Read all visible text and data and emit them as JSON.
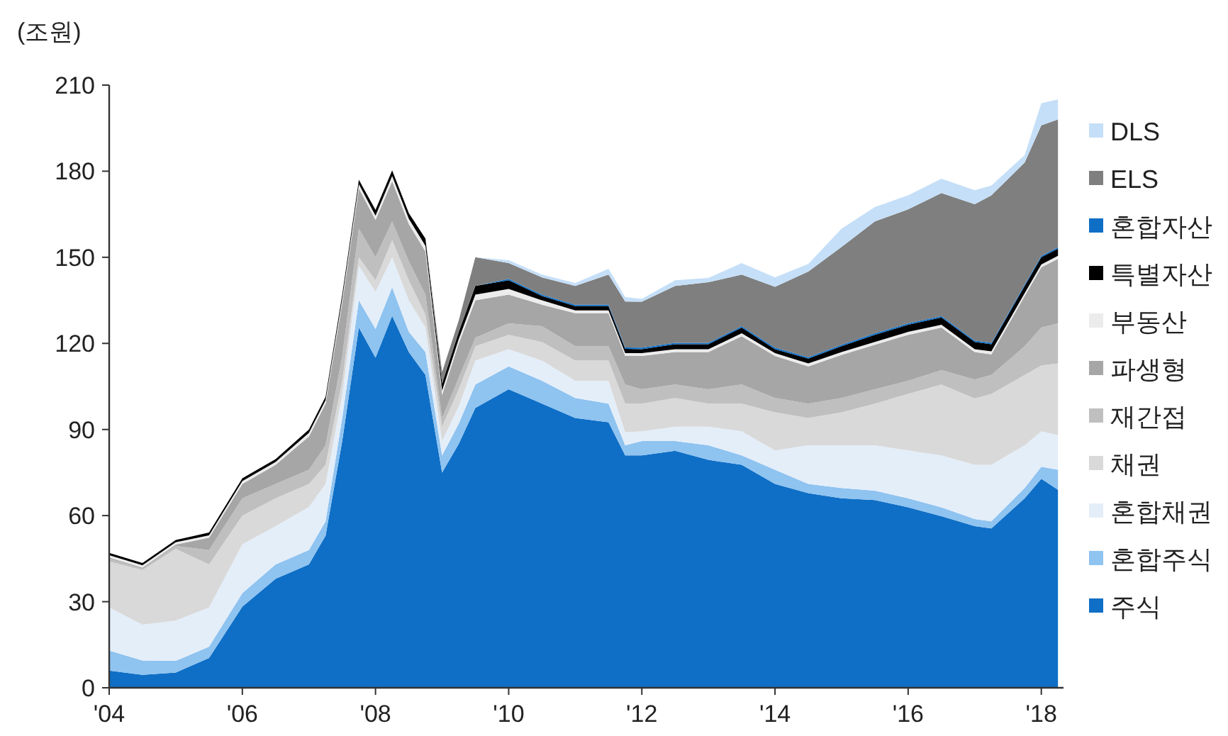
{
  "chart_data": {
    "type": "area",
    "stacked": true,
    "ylabel": "(조원)",
    "legend": "right",
    "grid": false,
    "x": [
      "2004-01",
      "2004-07",
      "2005-01",
      "2005-07",
      "2006-01",
      "2006-07",
      "2007-01",
      "2007-04",
      "2007-07",
      "2007-10",
      "2008-01",
      "2008-04",
      "2008-07",
      "2008-10",
      "2009-01",
      "2009-04",
      "2009-07",
      "2010-01",
      "2010-07",
      "2011-01",
      "2011-07",
      "2011-10",
      "2012-01",
      "2012-07",
      "2013-01",
      "2013-07",
      "2014-01",
      "2014-07",
      "2015-01",
      "2015-07",
      "2016-01",
      "2016-07",
      "2017-01",
      "2017-04",
      "2017-10",
      "2018-01",
      "2018-04"
    ],
    "xlim": [
      "2004-01",
      "2018-05"
    ],
    "xticks": [
      {
        "value": "2004-01",
        "label": "'04"
      },
      {
        "value": "2006-01",
        "label": "'06"
      },
      {
        "value": "2008-01",
        "label": "'08"
      },
      {
        "value": "2010-01",
        "label": "'10"
      },
      {
        "value": "2012-01",
        "label": "'12"
      },
      {
        "value": "2014-01",
        "label": "'14"
      },
      {
        "value": "2016-01",
        "label": "'16"
      },
      {
        "value": "2018-01",
        "label": "'18"
      }
    ],
    "ylim": [
      0,
      210
    ],
    "yticks": [
      0,
      30,
      60,
      90,
      120,
      150,
      180,
      210
    ],
    "series": [
      {
        "name": "주식",
        "color": "#0f6fc6",
        "values": [
          6,
          4.5,
          5.3,
          10.4,
          28.3,
          38,
          43,
          53,
          86,
          125.5,
          115,
          129.6,
          117,
          109,
          75,
          85,
          97.5,
          104,
          99,
          94,
          92.5,
          81,
          81,
          82.6,
          79.4,
          77.7,
          71,
          67.8,
          66,
          65.4,
          62.9,
          59.8,
          56.3,
          55.5,
          66,
          72.8,
          69
        ]
      },
      {
        "name": "혼합주식",
        "color": "#8fc3f0",
        "values": [
          7,
          5,
          4.1,
          3.9,
          4.7,
          5,
          5,
          5,
          8,
          9.5,
          10,
          9.9,
          7,
          8,
          6,
          7,
          8.2,
          8,
          8,
          7,
          6.5,
          3.5,
          5,
          3.4,
          5.1,
          3.3,
          5,
          3.2,
          3.6,
          3.3,
          3.1,
          3.1,
          2.5,
          2.5,
          3.6,
          4.2,
          7
        ]
      },
      {
        "name": "혼합채권",
        "color": "#e4eef9",
        "values": [
          15,
          12.5,
          14,
          13.7,
          17,
          13.3,
          15,
          13,
          8,
          12,
          13,
          10.5,
          11,
          8.5,
          5,
          6,
          8.3,
          6,
          7,
          6,
          8,
          4.5,
          3.4,
          5,
          6.5,
          8.4,
          6.7,
          13.5,
          14.9,
          15.8,
          16.7,
          18.1,
          18.9,
          19.7,
          14.9,
          12.4,
          12
        ]
      },
      {
        "name": "채권",
        "color": "#d9d9d9",
        "values": [
          16,
          19,
          25,
          15,
          10,
          9.7,
          8,
          6.7,
          5,
          3,
          4,
          6,
          7,
          4.5,
          5,
          6,
          5,
          5,
          6.5,
          7,
          7,
          10,
          9.6,
          10,
          8,
          9.6,
          13.3,
          9.5,
          11.5,
          14.5,
          19.7,
          24.7,
          23.1,
          24.7,
          24.5,
          22.9,
          25
        ]
      },
      {
        "name": "재간접",
        "color": "#bfbfbf",
        "values": [
          1,
          0.5,
          1,
          5,
          6,
          5,
          5,
          6.8,
          8.6,
          10,
          8,
          6.5,
          6.6,
          7,
          3,
          4,
          3,
          4,
          5.5,
          5,
          5,
          6.7,
          5,
          4.7,
          5,
          6.7,
          5,
          5,
          5,
          5,
          4.6,
          5,
          6.6,
          6.6,
          10,
          13.2,
          14
        ]
      },
      {
        "name": "파생형",
        "color": "#a6a6a6",
        "values": [
          0.4,
          0.4,
          0.5,
          4.3,
          5,
          6.7,
          11.6,
          14.5,
          18.4,
          14,
          13,
          14,
          13,
          15,
          8,
          12,
          13,
          10,
          7.5,
          11.5,
          11.5,
          9.9,
          11.6,
          11.3,
          13,
          16.8,
          14.6,
          13,
          15,
          15.5,
          16,
          14.8,
          9.6,
          7.2,
          17.5,
          21,
          22.5
        ]
      },
      {
        "name": "부동산",
        "color": "#ececec",
        "values": [
          0.8,
          0.8,
          0.8,
          0.8,
          1,
          1,
          1.2,
          1.2,
          1.5,
          1.5,
          1.5,
          1.8,
          1.8,
          2,
          1.5,
          1.5,
          2,
          2,
          1.5,
          1,
          1,
          1,
          1,
          1,
          1,
          1,
          1,
          1,
          1,
          1,
          1,
          1,
          1,
          1,
          1,
          1,
          1
        ]
      },
      {
        "name": "특별자산",
        "color": "#000000",
        "values": [
          0.8,
          0.8,
          0.8,
          1,
          1,
          1,
          1.2,
          1.2,
          1.5,
          1.5,
          2,
          2,
          2,
          2.5,
          2.5,
          2.5,
          3,
          3,
          1.5,
          1.5,
          1.5,
          1.5,
          1.4,
          1.7,
          1.7,
          2,
          1.4,
          1.7,
          2,
          2.5,
          2.5,
          2.5,
          2.5,
          2.5,
          2.5,
          2.5,
          2.5
        ]
      },
      {
        "name": "혼합자산",
        "color": "#0f6fc6",
        "values": [
          0,
          0,
          0,
          0,
          0,
          0,
          0,
          0,
          0,
          0,
          0,
          0,
          0,
          0,
          0,
          0,
          0,
          0.5,
          0.5,
          0.5,
          0.5,
          0.5,
          0.5,
          0.5,
          0.5,
          0.5,
          0.5,
          0.5,
          0.5,
          0.5,
          0.5,
          0.5,
          0.5,
          0.5,
          0.5,
          0.5,
          0.5
        ]
      },
      {
        "name": "ELS",
        "color": "#7f7f7f",
        "values": [
          0,
          0,
          0,
          0,
          0,
          0,
          0,
          0,
          0,
          0,
          0,
          0,
          0,
          0,
          4,
          4,
          10,
          5.5,
          6,
          6.5,
          10.5,
          16,
          16,
          19.8,
          21.1,
          18,
          21.2,
          29.8,
          34.1,
          39,
          39.7,
          42.9,
          47.5,
          51.4,
          42.5,
          45.5,
          44.5
        ]
      },
      {
        "name": "DLS",
        "color": "#c5dff8",
        "values": [
          0,
          0,
          0,
          0,
          0,
          0,
          0,
          0,
          0,
          0,
          0,
          0,
          0,
          0,
          0,
          0,
          0,
          1,
          1,
          1,
          2,
          1.5,
          1,
          2,
          1.5,
          4,
          3.3,
          2.7,
          6.4,
          5,
          4.9,
          5,
          4.9,
          3.4,
          2.6,
          7.7,
          7
        ]
      }
    ]
  }
}
